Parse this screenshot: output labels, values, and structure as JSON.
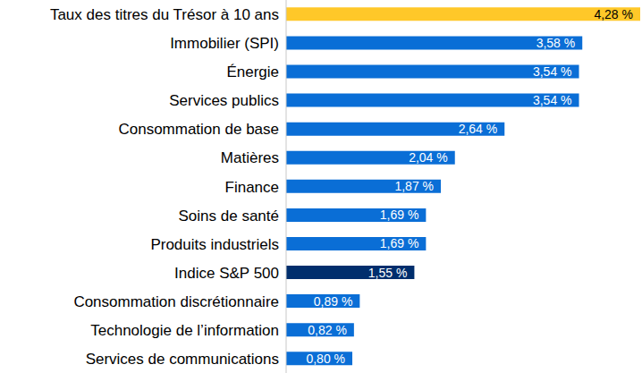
{
  "chart_data": {
    "type": "bar",
    "orientation": "horizontal",
    "categories": [
      "Taux des titres du Trésor à 10 ans",
      "Immobilier (SPI)",
      "Énergie",
      "Services publics",
      "Consommation de base",
      "Matières",
      "Finance",
      "Soins de santé",
      "Produits industriels",
      "Indice S&P 500",
      "Consommation discrétionnaire",
      "Technologie de l’information",
      "Services de communications"
    ],
    "values": [
      4.28,
      3.58,
      3.54,
      3.54,
      2.64,
      2.04,
      1.87,
      1.69,
      1.69,
      1.55,
      0.89,
      0.82,
      0.8
    ],
    "value_labels": [
      "4,28 %",
      "3,58 %",
      "3,54 %",
      "3,54 %",
      "2,64 %",
      "2,04 %",
      "1,87 %",
      "1,69 %",
      "1,69 %",
      "1,55 %",
      "0,89 %",
      "0,82 %",
      "0,80 %"
    ],
    "colors": [
      "#FFC829",
      "#0A6ED6",
      "#0A6ED6",
      "#0A6ED6",
      "#0A6ED6",
      "#0A6ED6",
      "#0A6ED6",
      "#0A6ED6",
      "#0A6ED6",
      "#002E6D",
      "#0A6ED6",
      "#0A6ED6",
      "#0A6ED6"
    ],
    "data_labels": true,
    "tick_labels": "y",
    "grid": false
  }
}
